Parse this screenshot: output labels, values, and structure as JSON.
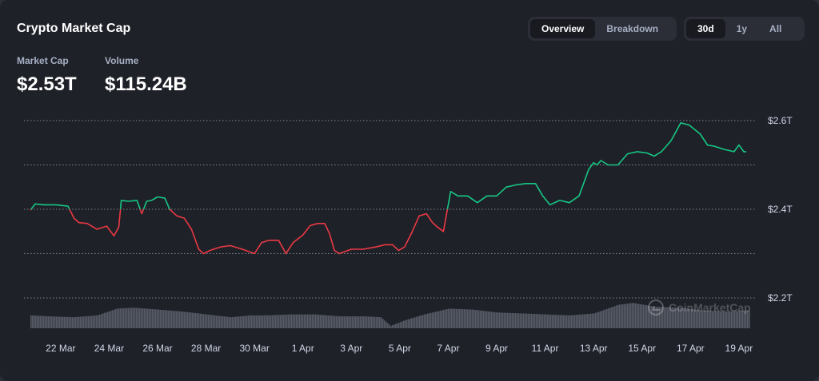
{
  "header": {
    "title": "Crypto Market Cap",
    "view_tabs": [
      {
        "label": "Overview",
        "active": true
      },
      {
        "label": "Breakdown",
        "active": false
      }
    ],
    "range_tabs": [
      {
        "label": "30d",
        "active": true
      },
      {
        "label": "1y",
        "active": false
      },
      {
        "label": "All",
        "active": false
      }
    ]
  },
  "stats": {
    "market_cap_label": "Market Cap",
    "market_cap_value": "$2.53T",
    "volume_label": "Volume",
    "volume_value": "$115.24B"
  },
  "watermark": "CoinMarketCap",
  "colors": {
    "up": "#16c784",
    "down": "#ea3943",
    "baseline": 2.4,
    "volume_bars": "#6b6f7b"
  },
  "chart_data": {
    "type": "line",
    "ylim": [
      2.14,
      2.62
    ],
    "y_ticks": [
      2.2,
      2.4,
      2.6
    ],
    "y_tick_labels": [
      "$2.2T",
      "$2.4T",
      "$2.6T"
    ],
    "grid": true,
    "x_range": [
      20.75,
      50.4
    ],
    "x_ticks": [
      22,
      24,
      26,
      28,
      30,
      32,
      34,
      36,
      38,
      40,
      42,
      44,
      46,
      48,
      50
    ],
    "x_tick_labels": [
      "22 Mar",
      "24 Mar",
      "26 Mar",
      "28 Mar",
      "30 Mar",
      "1 Apr",
      "3 Apr",
      "5 Apr",
      "7 Apr",
      "9 Apr",
      "11 Apr",
      "13 Apr",
      "15 Apr",
      "17 Apr",
      "19 Apr"
    ],
    "series": [
      {
        "x": [
          20.75,
          20.95,
          21.3,
          21.8,
          22.3,
          22.55,
          22.75,
          23.1,
          23.5,
          23.9,
          24.2,
          24.4,
          24.5,
          24.8,
          25.15,
          25.35,
          25.55,
          25.75,
          26.0,
          26.3,
          26.5,
          26.8,
          27.1,
          27.4,
          27.7,
          27.9,
          28.2,
          28.6,
          29.0,
          29.5,
          30.0,
          30.3,
          30.6,
          31.0,
          31.3,
          31.6,
          32.0,
          32.3,
          32.6,
          32.9,
          33.1,
          33.3,
          33.5,
          34.0,
          34.5,
          35.0,
          35.4,
          35.7,
          35.95,
          36.2,
          36.5,
          36.8,
          37.1,
          37.35,
          37.55,
          37.8,
          38.1,
          38.4,
          38.8,
          39.2,
          39.6,
          40.0,
          40.4,
          40.8,
          41.2,
          41.6,
          41.9,
          42.2,
          42.6,
          43.0,
          43.4,
          43.8,
          44.0,
          44.15,
          44.3,
          44.6,
          45.0,
          45.4,
          45.8,
          46.2,
          46.5,
          46.8,
          47.2,
          47.6,
          47.95,
          48.1,
          48.4,
          48.7,
          49.0,
          49.4,
          49.8,
          50.0,
          50.2,
          50.3
        ],
        "y": [
          2.398,
          2.412,
          2.41,
          2.41,
          2.407,
          2.38,
          2.37,
          2.368,
          2.355,
          2.362,
          2.34,
          2.36,
          2.42,
          2.418,
          2.42,
          2.39,
          2.418,
          2.42,
          2.428,
          2.425,
          2.4,
          2.385,
          2.38,
          2.355,
          2.31,
          2.3,
          2.308,
          2.315,
          2.318,
          2.31,
          2.3,
          2.325,
          2.33,
          2.33,
          2.3,
          2.325,
          2.342,
          2.363,
          2.368,
          2.368,
          2.345,
          2.307,
          2.3,
          2.31,
          2.31,
          2.315,
          2.32,
          2.32,
          2.307,
          2.315,
          2.348,
          2.385,
          2.39,
          2.37,
          2.36,
          2.35,
          2.44,
          2.43,
          2.43,
          2.415,
          2.43,
          2.43,
          2.45,
          2.455,
          2.458,
          2.458,
          2.43,
          2.41,
          2.42,
          2.415,
          2.43,
          2.49,
          2.505,
          2.5,
          2.51,
          2.5,
          2.5,
          2.525,
          2.53,
          2.527,
          2.52,
          2.53,
          2.555,
          2.595,
          2.59,
          2.583,
          2.57,
          2.545,
          2.542,
          2.535,
          2.53,
          2.545,
          2.53,
          2.53
        ]
      }
    ],
    "volume": {
      "x": [
        20.75,
        21.5,
        22.5,
        23.5,
        24.3,
        25.0,
        26.0,
        27.0,
        28.0,
        29.0,
        29.8,
        30.5,
        31.5,
        32.5,
        33.5,
        34.5,
        35.2,
        35.6,
        36.2,
        37.0,
        38.0,
        39.0,
        40.0,
        41.0,
        42.0,
        43.0,
        44.0,
        45.0,
        45.6,
        46.5,
        47.5,
        48.5,
        49.5,
        50.3
      ],
      "values": [
        0.55,
        0.5,
        0.45,
        0.55,
        0.9,
        0.95,
        0.85,
        0.75,
        0.6,
        0.45,
        0.55,
        0.55,
        0.6,
        0.6,
        0.5,
        0.5,
        0.45,
        0.0,
        0.3,
        0.6,
        0.9,
        0.85,
        0.7,
        0.65,
        0.6,
        0.55,
        0.65,
        1.1,
        1.2,
        1.0,
        0.95,
        0.8,
        0.75,
        0.8
      ]
    }
  }
}
